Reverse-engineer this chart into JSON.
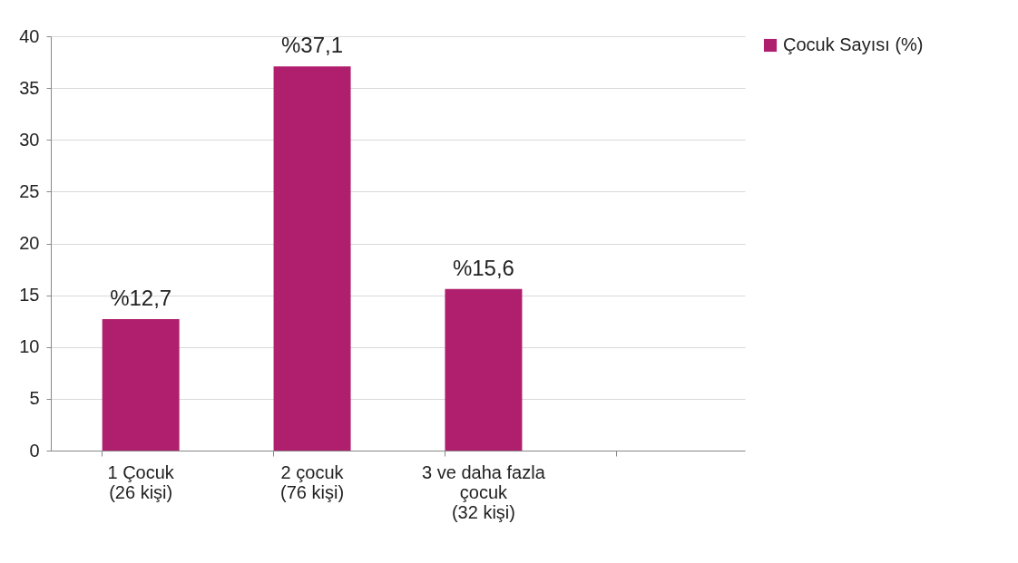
{
  "chart_data": {
    "type": "bar",
    "categories": [
      "1 Çocuk\n(26 kişi)",
      "2 çocuk\n(76 kişi)",
      "3 ve daha fazla\nçocuk\n(32 kişi)",
      null
    ],
    "series": [
      {
        "name": "Çocuk Sayısı (%)",
        "color": "#b01e6e",
        "values": [
          12.7,
          37.1,
          15.6,
          null
        ],
        "value_labels": [
          "%12,7",
          "%37,1",
          "%15,6",
          null
        ]
      }
    ],
    "ylim": [
      0,
      40
    ],
    "yticks": [
      0,
      5,
      10,
      15,
      20,
      25,
      30,
      35,
      40
    ],
    "grid": "y",
    "legend": "right"
  }
}
